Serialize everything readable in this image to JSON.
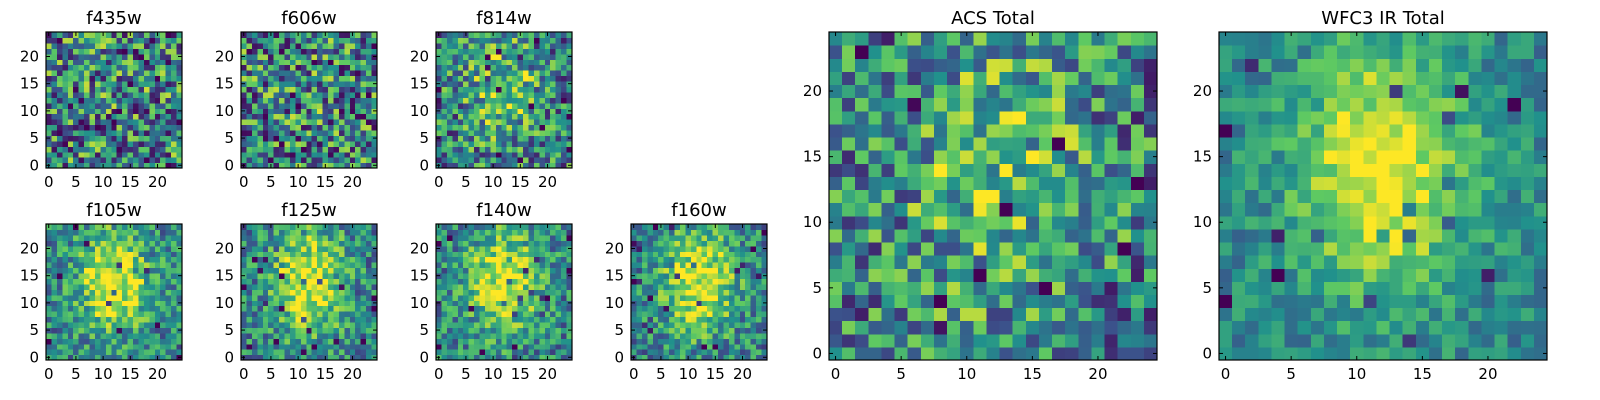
{
  "figure": {
    "colormap": [
      "#440154",
      "#3b528b",
      "#21918c",
      "#5ec962",
      "#fde725"
    ]
  },
  "chart_data": [
    {
      "type": "heatmap",
      "title": "f435w",
      "grid_size": [
        25,
        25
      ],
      "x_ticks": [
        "0",
        "5",
        "10",
        "15",
        "20"
      ],
      "y_ticks": [
        "0",
        "5",
        "10",
        "15",
        "20"
      ],
      "xlim": [
        0,
        24
      ],
      "ylim": [
        0,
        24
      ],
      "values": [],
      "seed": 11,
      "profile": "noise"
    },
    {
      "type": "heatmap",
      "title": "f606w",
      "grid_size": [
        25,
        25
      ],
      "x_ticks": [
        "0",
        "5",
        "10",
        "15",
        "20"
      ],
      "y_ticks": [
        "0",
        "5",
        "10",
        "15",
        "20"
      ],
      "xlim": [
        0,
        24
      ],
      "ylim": [
        0,
        24
      ],
      "values": [],
      "seed": 23,
      "profile": "noise"
    },
    {
      "type": "heatmap",
      "title": "f814w",
      "grid_size": [
        25,
        25
      ],
      "x_ticks": [
        "0",
        "5",
        "10",
        "15",
        "20"
      ],
      "y_ticks": [
        "0",
        "5",
        "10",
        "15",
        "20"
      ],
      "xlim": [
        0,
        24
      ],
      "ylim": [
        0,
        24
      ],
      "values": [],
      "seed": 37,
      "profile": "weak"
    },
    {
      "type": "heatmap",
      "title": "f105w",
      "grid_size": [
        25,
        25
      ],
      "x_ticks": [
        "0",
        "5",
        "10",
        "15",
        "20"
      ],
      "y_ticks": [
        "0",
        "5",
        "10",
        "15",
        "20"
      ],
      "xlim": [
        0,
        24
      ],
      "ylim": [
        0,
        24
      ],
      "values": [],
      "seed": 41,
      "profile": "source"
    },
    {
      "type": "heatmap",
      "title": "f125w",
      "grid_size": [
        25,
        25
      ],
      "x_ticks": [
        "0",
        "5",
        "10",
        "15",
        "20"
      ],
      "y_ticks": [
        "0",
        "5",
        "10",
        "15",
        "20"
      ],
      "xlim": [
        0,
        24
      ],
      "ylim": [
        0,
        24
      ],
      "values": [],
      "seed": 53,
      "profile": "source"
    },
    {
      "type": "heatmap",
      "title": "f140w",
      "grid_size": [
        25,
        25
      ],
      "x_ticks": [
        "0",
        "5",
        "10",
        "15",
        "20"
      ],
      "y_ticks": [
        "0",
        "5",
        "10",
        "15",
        "20"
      ],
      "xlim": [
        0,
        24
      ],
      "ylim": [
        0,
        24
      ],
      "values": [],
      "seed": 67,
      "profile": "source"
    },
    {
      "type": "heatmap",
      "title": "f160w",
      "grid_size": [
        25,
        25
      ],
      "x_ticks": [
        "0",
        "5",
        "10",
        "15",
        "20"
      ],
      "y_ticks": [
        "0",
        "5",
        "10",
        "15",
        "20"
      ],
      "xlim": [
        0,
        24
      ],
      "ylim": [
        0,
        24
      ],
      "values": [],
      "seed": 79,
      "profile": "source"
    },
    {
      "type": "heatmap",
      "title": "ACS Total",
      "grid_size": [
        25,
        25
      ],
      "x_ticks": [
        "0",
        "5",
        "10",
        "15",
        "20"
      ],
      "y_ticks": [
        "0",
        "5",
        "10",
        "15",
        "20"
      ],
      "xlim": [
        0,
        24
      ],
      "ylim": [
        0,
        24
      ],
      "values": [],
      "seed": 97,
      "profile": "weak"
    },
    {
      "type": "heatmap",
      "title": "WFC3 IR Total",
      "grid_size": [
        25,
        25
      ],
      "x_ticks": [
        "0",
        "5",
        "10",
        "15",
        "20"
      ],
      "y_ticks": [
        "0",
        "5",
        "10",
        "15",
        "20"
      ],
      "xlim": [
        0,
        24
      ],
      "ylim": [
        0,
        24
      ],
      "values": [],
      "seed": 113,
      "profile": "smooth"
    }
  ]
}
